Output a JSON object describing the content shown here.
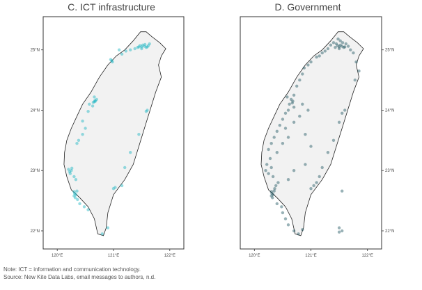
{
  "panels": [
    {
      "id": "c",
      "title": "C. ICT infrastructure",
      "dot_color": "#17b3c0",
      "x_ticks": [
        "120°E",
        "121°E",
        "122°E"
      ],
      "y_ticks": [
        "25°N",
        "24°N",
        "23°N",
        "22°N"
      ],
      "points": [
        [
          121.45,
          25.05
        ],
        [
          121.5,
          25.05
        ],
        [
          121.55,
          25.06
        ],
        [
          121.58,
          25.04
        ],
        [
          121.52,
          25.08
        ],
        [
          121.47,
          25.07
        ],
        [
          121.5,
          25.02
        ],
        [
          121.6,
          25.05
        ],
        [
          121.43,
          25.04
        ],
        [
          121.56,
          25.09
        ],
        [
          121.38,
          25.02
        ],
        [
          121.3,
          25.0
        ],
        [
          121.22,
          24.98
        ],
        [
          121.15,
          24.93
        ],
        [
          121.1,
          25.0
        ],
        [
          121.62,
          25.07
        ],
        [
          121.64,
          25.1
        ],
        [
          120.97,
          24.82
        ],
        [
          120.98,
          24.8
        ],
        [
          120.95,
          24.84
        ],
        [
          120.67,
          24.16
        ],
        [
          120.68,
          24.15
        ],
        [
          120.66,
          24.14
        ],
        [
          120.64,
          24.13
        ],
        [
          120.7,
          24.18
        ],
        [
          120.63,
          24.07
        ],
        [
          120.57,
          24.1
        ],
        [
          120.66,
          24.22
        ],
        [
          120.55,
          23.98
        ],
        [
          120.45,
          23.82
        ],
        [
          120.5,
          23.7
        ],
        [
          120.45,
          23.6
        ],
        [
          120.38,
          23.5
        ],
        [
          120.35,
          23.45
        ],
        [
          120.25,
          23.0
        ],
        [
          120.22,
          22.98
        ],
        [
          120.2,
          23.02
        ],
        [
          120.23,
          22.95
        ],
        [
          120.26,
          23.04
        ],
        [
          120.3,
          22.9
        ],
        [
          120.33,
          22.85
        ],
        [
          120.3,
          22.65
        ],
        [
          120.31,
          22.62
        ],
        [
          120.33,
          22.6
        ],
        [
          120.3,
          22.58
        ],
        [
          120.35,
          22.66
        ],
        [
          120.32,
          22.55
        ],
        [
          120.36,
          22.52
        ],
        [
          120.4,
          22.45
        ],
        [
          120.48,
          22.4
        ],
        [
          120.55,
          22.35
        ],
        [
          121.0,
          22.7
        ],
        [
          121.03,
          22.72
        ],
        [
          121.15,
          22.75
        ],
        [
          121.2,
          23.05
        ],
        [
          121.3,
          23.3
        ],
        [
          121.45,
          23.6
        ],
        [
          121.58,
          23.98
        ],
        [
          121.6,
          24.0
        ],
        [
          120.9,
          22.05
        ],
        [
          120.8,
          21.95
        ]
      ]
    },
    {
      "id": "d",
      "title": "D. Government",
      "dot_color": "#1d5560",
      "x_ticks": [
        "120°E",
        "121°E",
        "122°E"
      ],
      "y_ticks": [
        "25°N",
        "24°N",
        "23°N",
        "22°N"
      ],
      "points": [
        [
          121.45,
          25.1
        ],
        [
          121.5,
          25.05
        ],
        [
          121.55,
          25.06
        ],
        [
          121.58,
          25.04
        ],
        [
          121.52,
          25.08
        ],
        [
          121.47,
          25.07
        ],
        [
          121.5,
          25.02
        ],
        [
          121.6,
          25.05
        ],
        [
          121.43,
          25.04
        ],
        [
          121.56,
          25.12
        ],
        [
          121.52,
          25.15
        ],
        [
          121.48,
          25.18
        ],
        [
          121.62,
          25.1
        ],
        [
          121.66,
          25.06
        ],
        [
          121.7,
          25.0
        ],
        [
          121.4,
          25.12
        ],
        [
          121.35,
          25.08
        ],
        [
          121.3,
          25.02
        ],
        [
          121.25,
          24.98
        ],
        [
          121.2,
          24.95
        ],
        [
          121.15,
          24.9
        ],
        [
          121.1,
          24.88
        ],
        [
          121.0,
          24.8
        ],
        [
          120.95,
          24.75
        ],
        [
          120.88,
          24.7
        ],
        [
          121.75,
          24.95
        ],
        [
          121.8,
          24.8
        ],
        [
          121.85,
          24.65
        ],
        [
          121.78,
          24.5
        ],
        [
          120.85,
          24.6
        ],
        [
          120.8,
          24.5
        ],
        [
          120.75,
          24.4
        ],
        [
          120.7,
          24.25
        ],
        [
          120.68,
          24.15
        ],
        [
          120.67,
          24.12
        ],
        [
          120.65,
          24.18
        ],
        [
          120.62,
          24.1
        ],
        [
          120.7,
          24.05
        ],
        [
          120.6,
          24.0
        ],
        [
          120.55,
          23.95
        ],
        [
          120.58,
          24.22
        ],
        [
          120.85,
          24.1
        ],
        [
          120.95,
          24.0
        ],
        [
          120.5,
          23.85
        ],
        [
          120.45,
          23.75
        ],
        [
          120.4,
          23.65
        ],
        [
          120.35,
          23.55
        ],
        [
          120.3,
          23.45
        ],
        [
          120.25,
          23.35
        ],
        [
          120.28,
          23.2
        ],
        [
          120.22,
          23.1
        ],
        [
          120.2,
          23.0
        ],
        [
          120.25,
          22.95
        ],
        [
          120.3,
          23.05
        ],
        [
          120.33,
          22.9
        ],
        [
          120.4,
          23.3
        ],
        [
          120.5,
          23.45
        ],
        [
          120.6,
          23.55
        ],
        [
          120.55,
          23.7
        ],
        [
          120.7,
          23.8
        ],
        [
          120.8,
          23.9
        ],
        [
          120.9,
          23.6
        ],
        [
          121.0,
          23.4
        ],
        [
          120.3,
          22.65
        ],
        [
          120.31,
          22.62
        ],
        [
          120.33,
          22.6
        ],
        [
          120.3,
          22.58
        ],
        [
          120.35,
          22.66
        ],
        [
          120.32,
          22.55
        ],
        [
          120.36,
          22.7
        ],
        [
          120.38,
          22.75
        ],
        [
          120.42,
          22.8
        ],
        [
          120.4,
          22.45
        ],
        [
          120.48,
          22.4
        ],
        [
          120.5,
          22.3
        ],
        [
          120.55,
          22.2
        ],
        [
          120.6,
          22.1
        ],
        [
          120.7,
          22.0
        ],
        [
          120.78,
          21.95
        ],
        [
          120.85,
          22.02
        ],
        [
          121.0,
          22.7
        ],
        [
          121.05,
          22.75
        ],
        [
          121.1,
          22.8
        ],
        [
          121.15,
          22.9
        ],
        [
          121.2,
          23.05
        ],
        [
          121.3,
          23.3
        ],
        [
          121.4,
          23.5
        ],
        [
          121.5,
          23.8
        ],
        [
          121.6,
          24.0
        ],
        [
          121.55,
          23.95
        ],
        [
          120.9,
          23.1
        ],
        [
          120.7,
          23.0
        ],
        [
          120.6,
          22.85
        ],
        [
          121.55,
          22.66
        ],
        [
          121.5,
          22.05
        ],
        [
          121.55,
          22.0
        ],
        [
          121.5,
          21.98
        ]
      ]
    }
  ],
  "notes": {
    "note": "Note: ICT = information and communication technology.",
    "source": "Source: New Kite Data Labs, email messages to authors, n.d."
  }
}
